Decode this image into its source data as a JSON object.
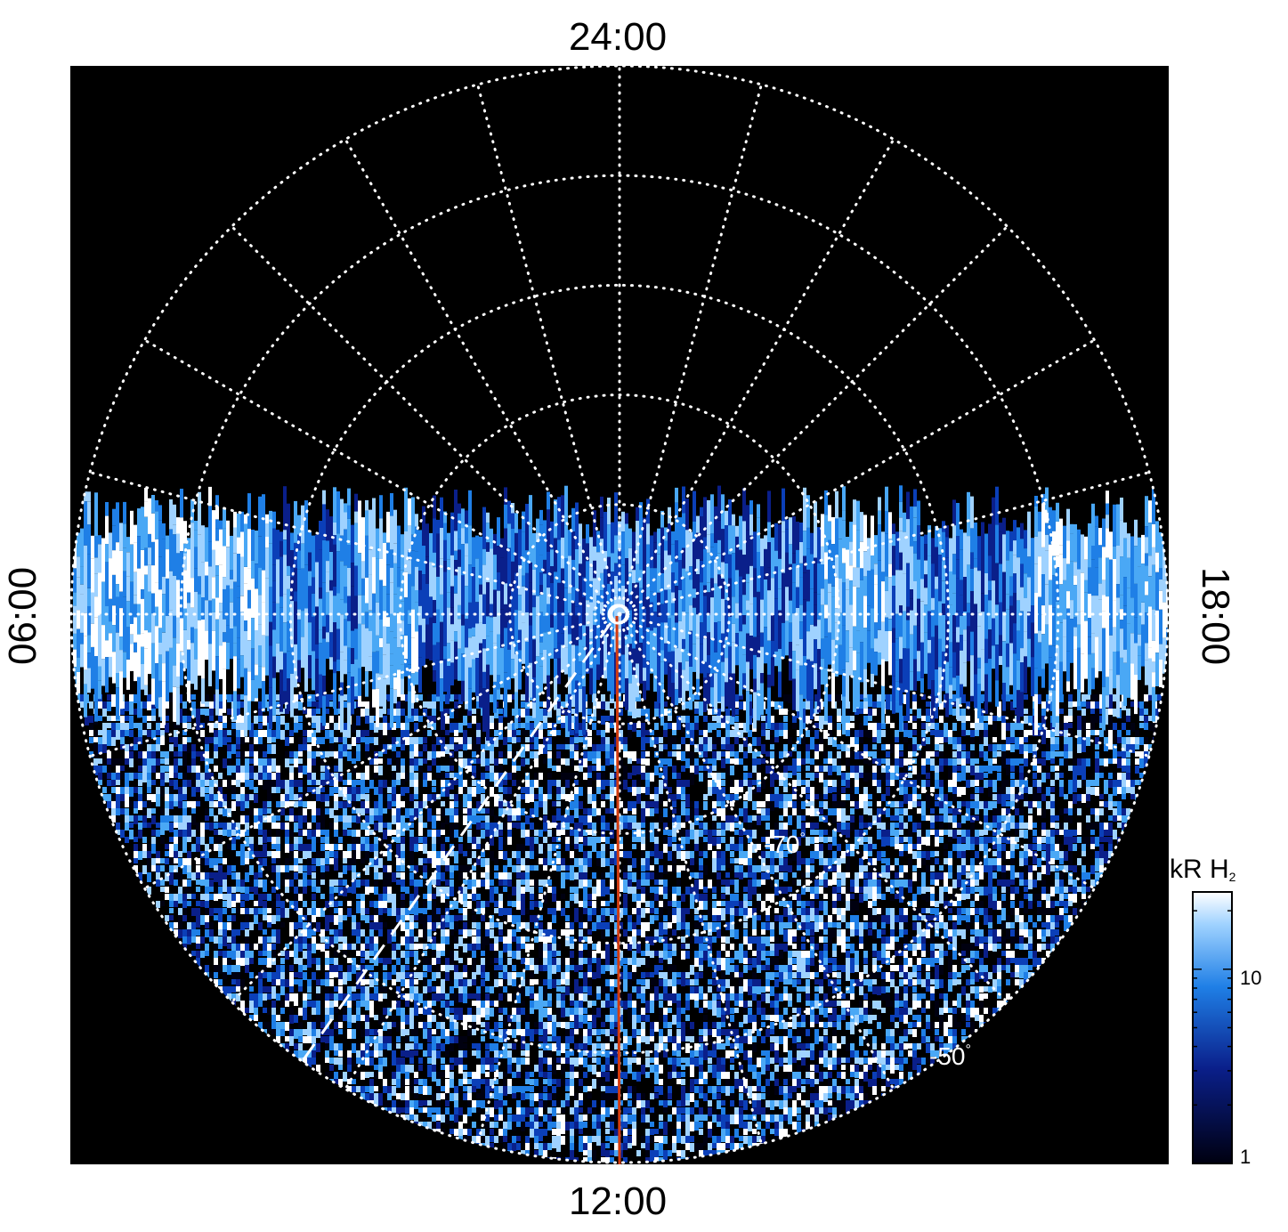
{
  "local_time_labels": {
    "top": "24:00",
    "bottom": "12:00",
    "left": "06:00",
    "right": "18:00"
  },
  "latitude_labels": {
    "inner": "-70",
    "outer": "-50",
    "degree_symbol": "°"
  },
  "colorbar": {
    "title": "kR H",
    "title_subscript": "2",
    "ticks": [
      "1",
      "10"
    ],
    "tick_values": [
      1,
      10
    ],
    "scale": "log",
    "range": [
      1,
      25
    ],
    "colors": {
      "low": "#000010",
      "mid_dark": "#0a1f8a",
      "mid": "#1f7fe6",
      "high": "#9fd2ff",
      "top": "#ffffff"
    }
  },
  "projection": {
    "type": "polar",
    "latitude_circles_deg": [
      -90,
      -80,
      -70,
      -60,
      -50,
      -40
    ],
    "meridian_step_hours": 1,
    "center_marker": "open circle"
  },
  "overlays": {
    "noon_meridian_line_color": "#d23b10",
    "dashed_line_color": "#ffffff"
  },
  "colors": {
    "background": "#000000",
    "grid": "#ffffff"
  }
}
